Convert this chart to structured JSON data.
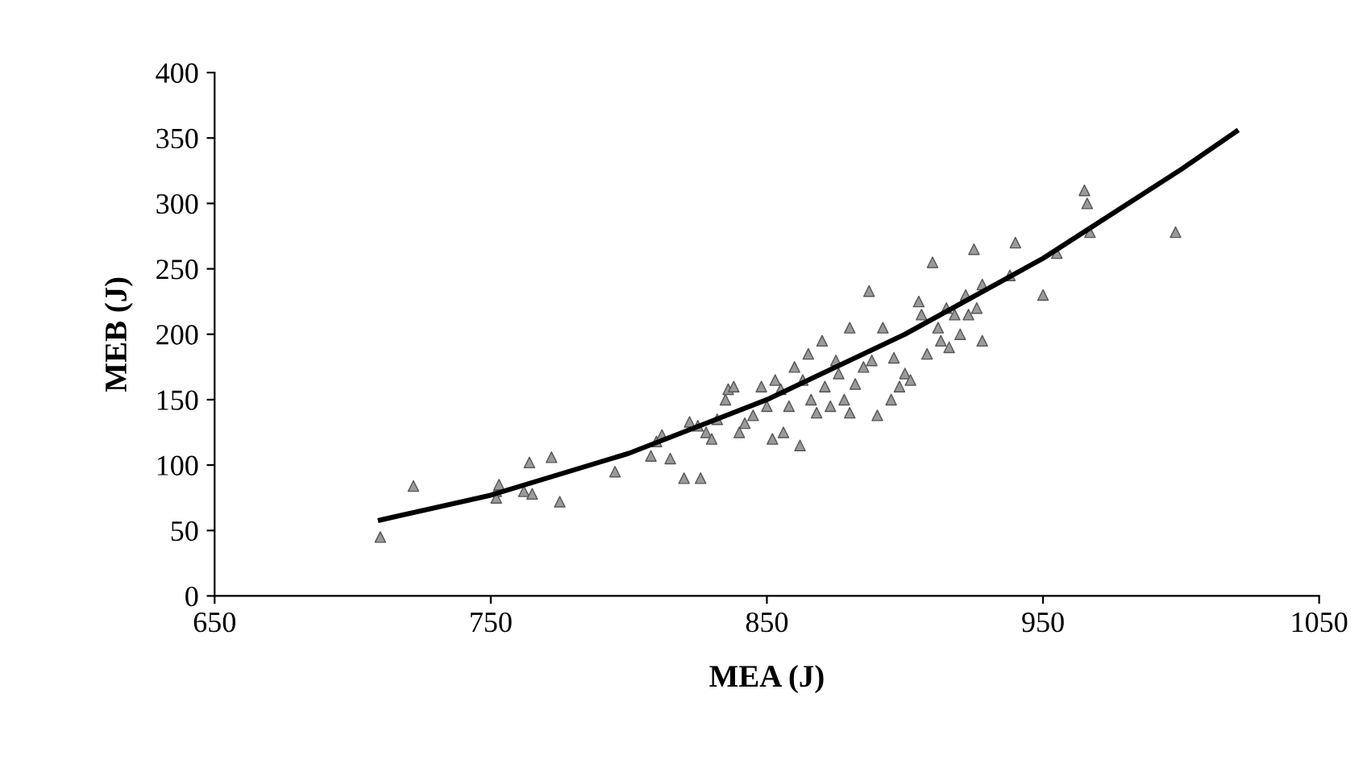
{
  "chart_data": {
    "type": "scatter",
    "xlabel": "MEA (J)",
    "ylabel": "MEB (J)",
    "xlim": [
      650,
      1050
    ],
    "xticks": [
      650,
      750,
      850,
      950,
      1050
    ],
    "ylim": [
      0,
      400
    ],
    "yticks": [
      0,
      50,
      100,
      150,
      200,
      250,
      300,
      350,
      400
    ],
    "grid": false,
    "series": [
      {
        "color": "#9a9a9a",
        "marker": "triangle",
        "x": [
          710,
          722,
          752,
          752,
          753,
          762,
          764,
          765,
          772,
          775,
          795,
          808,
          810,
          812,
          815,
          820,
          822,
          825,
          826,
          828,
          830,
          832,
          835,
          836,
          838,
          840,
          842,
          845,
          848,
          850,
          852,
          853,
          855,
          856,
          858,
          860,
          862,
          863,
          865,
          866,
          868,
          870,
          871,
          873,
          875,
          876,
          878,
          880,
          880,
          882,
          885,
          887,
          888,
          890,
          892,
          895,
          896,
          898,
          900,
          902,
          905,
          906,
          908,
          910,
          912,
          913,
          915,
          916,
          918,
          920,
          922,
          923,
          925,
          926,
          928,
          928,
          938,
          940,
          950,
          955,
          965,
          966,
          967,
          998
        ],
        "values": [
          45,
          84,
          80,
          75,
          85,
          80,
          102,
          78,
          106,
          72,
          95,
          107,
          118,
          123,
          105,
          90,
          133,
          130,
          90,
          125,
          120,
          135,
          150,
          158,
          160,
          125,
          132,
          138,
          160,
          145,
          120,
          165,
          158,
          125,
          145,
          175,
          115,
          165,
          185,
          150,
          140,
          195,
          160,
          145,
          180,
          170,
          150,
          205,
          140,
          162,
          175,
          233,
          180,
          138,
          205,
          150,
          182,
          160,
          170,
          165,
          225,
          215,
          185,
          255,
          205,
          195,
          220,
          190,
          215,
          200,
          230,
          215,
          265,
          220,
          238,
          195,
          245,
          270,
          230,
          262,
          310,
          300,
          278,
          278
        ]
      },
      {
        "type": "line",
        "color": "#000000",
        "marker": "none",
        "line_style": "solid",
        "x": [
          710,
          750,
          800,
          850,
          900,
          950,
          1000,
          1020
        ],
        "values": [
          58,
          77,
          109,
          150,
          200,
          258,
          326,
          355
        ]
      }
    ]
  }
}
